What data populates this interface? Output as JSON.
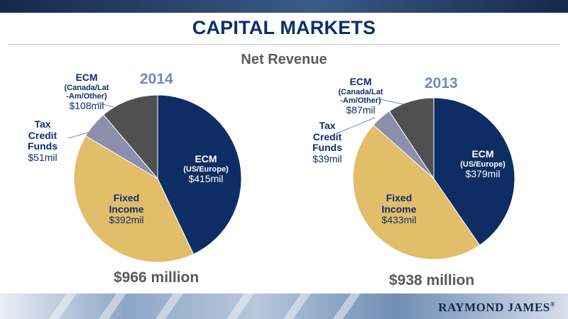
{
  "page": {
    "title": "CAPITAL MARKETS",
    "subtitle": "Net Revenue",
    "brand": "RAYMOND JAMES",
    "brand_mark": "®"
  },
  "colors": {
    "ecm_us": "#0e2d64",
    "fixed_income": "#e2bd6a",
    "tax_credit": "#8d8dac",
    "ecm_canada": "#505050"
  },
  "chart_data": [
    {
      "type": "pie",
      "title": "2014",
      "total_label": "$966 million",
      "slices": [
        {
          "name": "ECM",
          "sub": "(US/Europe)",
          "value": 415,
          "value_label": "$415mil",
          "color": "#0e2d64"
        },
        {
          "name": "Fixed Income",
          "name_lines": [
            "Fixed",
            "Income"
          ],
          "value": 392,
          "value_label": "$392mil",
          "color": "#e2bd6a"
        },
        {
          "name": "Tax Credit Funds",
          "name_lines": [
            "Tax",
            "Credit",
            "Funds"
          ],
          "value": 51,
          "value_label": "$51mil",
          "color": "#8d8dac"
        },
        {
          "name": "ECM",
          "sub_lines": [
            "(Canada/Lat",
            "-Am/Other)"
          ],
          "value": 108,
          "value_label": "$108mil",
          "color": "#505050"
        }
      ]
    },
    {
      "type": "pie",
      "title": "2013",
      "total_label": "$938 million",
      "slices": [
        {
          "name": "ECM",
          "sub": "(US/Europe)",
          "value": 379,
          "value_label": "$379mil",
          "color": "#0e2d64"
        },
        {
          "name": "Fixed Income",
          "name_lines": [
            "Fixed",
            "Income"
          ],
          "value": 433,
          "value_label": "$433mil",
          "color": "#e2bd6a"
        },
        {
          "name": "Tax Credit Funds",
          "name_lines": [
            "Tax",
            "Credit",
            "Funds"
          ],
          "value": 39,
          "value_label": "$39mil",
          "color": "#8d8dac"
        },
        {
          "name": "ECM",
          "sub_lines": [
            "(Canada/Lat",
            "-Am/Other)"
          ],
          "value": 87,
          "value_label": "$87mil",
          "color": "#505050"
        }
      ]
    }
  ]
}
